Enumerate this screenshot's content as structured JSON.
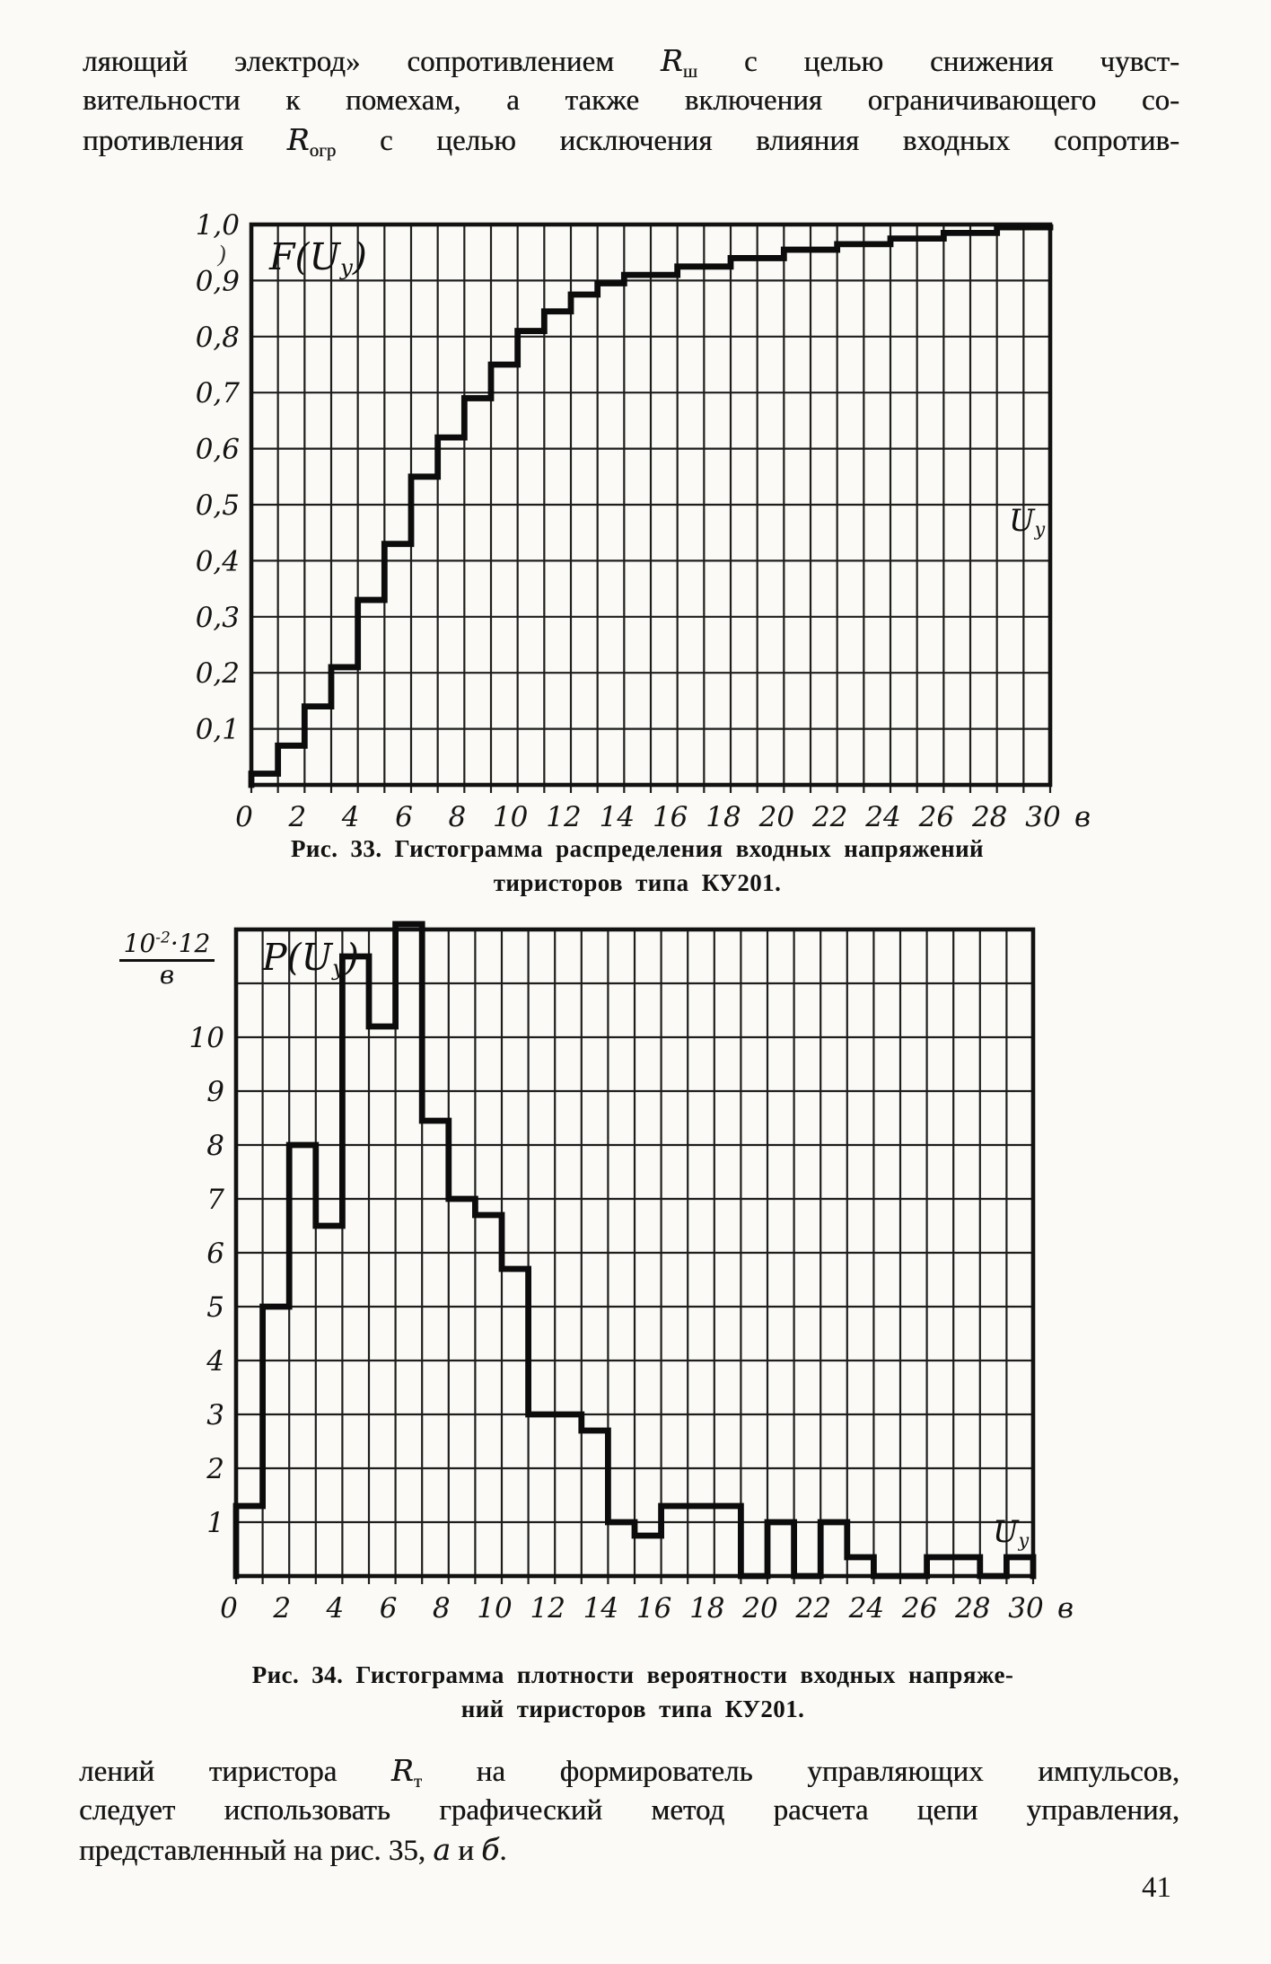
{
  "page": {
    "number": "41"
  },
  "top_paragraph": {
    "l1a": "ляющий электрод» сопротивлением ",
    "l1R": "R",
    "l1Rsub": "ш",
    "l1b": " с целью снижения чувст-",
    "l2": "вительности к помехам, а также включения ограничивающего со-",
    "l3a": "противления ",
    "l3R": "R",
    "l3Rsub": "огр",
    "l3b": " с целью исключения влияния входных сопротив-"
  },
  "figure33": {
    "caption_line1": "Рис. 33. Гистограмма распределения входных напряжений",
    "caption_line2": "тиристоров типа КУ201."
  },
  "figure34": {
    "caption_line1": "Рис. 34. Гистограмма плотности вероятности входных напряже-",
    "caption_line2": "ний тиристоров типа КУ201."
  },
  "bottom_paragraph": {
    "l1a": "лений тиристора ",
    "l1R": "R",
    "l1Rsub": "т",
    "l1b": " на формирователь управляющих импульсов,",
    "l2": "следует использовать графический метод расчета цепи управления,",
    "l3a": "представленный на рис. 35, ",
    "l3i1": "а",
    "l3m": " и ",
    "l3i2": "б",
    "l3end": "."
  },
  "stray_mark": ")",
  "chart_data": [
    {
      "id": "fig33",
      "type": "step",
      "title_pre": "F(U",
      "title_sub": "y",
      "title_post": ")",
      "corner_pre": "U",
      "corner_sub": "y",
      "xlabel_unit": "в",
      "x_ticks": [
        0,
        2,
        4,
        6,
        8,
        10,
        12,
        14,
        16,
        18,
        20,
        22,
        24,
        26,
        28,
        30
      ],
      "x_max": 30,
      "ylim": [
        0,
        1.0
      ],
      "grid_y_step": 0.1,
      "y_tick_values": [
        0.1,
        0.2,
        0.3,
        0.4,
        0.5,
        0.6,
        0.7,
        0.8,
        0.9,
        1.0
      ],
      "y_tick_labels": [
        "0,1",
        "0,2",
        "0,3",
        "0,4",
        "0,5",
        "0,6",
        "0,7",
        "0,8",
        "0,9",
        "1,0"
      ],
      "values_per_unit": [
        0.02,
        0.07,
        0.14,
        0.21,
        0.33,
        0.43,
        0.55,
        0.62,
        0.69,
        0.75,
        0.81,
        0.845,
        0.875,
        0.895,
        0.91,
        0.91,
        0.925,
        0.925,
        0.94,
        0.94,
        0.955,
        0.955,
        0.965,
        0.965,
        0.975,
        0.975,
        0.985,
        0.985,
        0.995,
        0.995
      ],
      "close_to_baseline": false
    },
    {
      "id": "fig34",
      "type": "histogram",
      "title_pre": "P(U",
      "title_sub": "y",
      "title_post": ")",
      "corner_pre": "U",
      "corner_sub": "y",
      "xlabel_unit": "в",
      "x_ticks": [
        0,
        2,
        4,
        6,
        8,
        10,
        12,
        14,
        16,
        18,
        20,
        22,
        24,
        26,
        28,
        30
      ],
      "x_max": 30,
      "ylim": [
        0,
        12
      ],
      "grid_y_step": 1,
      "y_tick_values": [
        1,
        2,
        3,
        4,
        5,
        6,
        7,
        8,
        9,
        10
      ],
      "y_tick_labels": [
        "1",
        "2",
        "3",
        "4",
        "5",
        "6",
        "7",
        "8",
        "9",
        "10"
      ],
      "scale_label": {
        "num_base": "10",
        "num_exp": "-2",
        "num_mul": "·12",
        "den": "в"
      },
      "values_per_unit": [
        1.3,
        5,
        8,
        6.5,
        11.5,
        10.2,
        12.1,
        8.45,
        7,
        6.7,
        5.7,
        3,
        3,
        2.7,
        1,
        0.75,
        1.3,
        1.3,
        1.3,
        0,
        1,
        0,
        1,
        0.35,
        0,
        0,
        0.35,
        0.35,
        0,
        0.35
      ],
      "close_to_baseline": true
    }
  ]
}
